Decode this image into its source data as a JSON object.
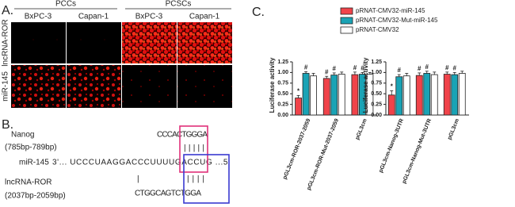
{
  "panel_a": {
    "label": "A.",
    "groups": [
      "PCCs",
      "PCSCs"
    ],
    "columns": [
      "BxPC-3",
      "Capan-1",
      "BxPC-3",
      "Capan-1"
    ],
    "rows": [
      "lncRNA-ROR",
      "miR-145"
    ]
  },
  "panel_b": {
    "label": "B.",
    "nanog": {
      "name": "Nanog",
      "range": "(785bp-789bp)",
      "sequence": "CCCACTGGGA",
      "pairs": "| | | | |"
    },
    "mir": {
      "name": "miR-145",
      "sequence": "3'... UCCCUAAGGACCCUUUUGACCUG ...5'"
    },
    "lncrna": {
      "name": "lncRNA-ROR",
      "range": "(2037bp-2059bp)",
      "sequence": "CTGGCAGTCTGGA",
      "pairs": "| | | |",
      "pair_single": "|"
    }
  },
  "panel_c_label": "C.",
  "chart_data": [
    {
      "type": "bar",
      "ylabel": "Luciferase activity",
      "categories": [
        "pGL3cm-ROR-2037-2059",
        "pGL3cm-ROR-Mut-2037-2059",
        "pGL3cm"
      ],
      "series": [
        {
          "name": "pRNAT-CMV32-miR-145",
          "color": "#f0434a",
          "values": [
            0.4,
            0.86,
            0.95
          ],
          "errors": [
            0.06,
            0.05,
            0.06
          ],
          "marks": [
            "*",
            "#",
            "#"
          ]
        },
        {
          "name": "pRNAT-CMV32-Mut-miR-145",
          "color": "#1aa3b5",
          "values": [
            0.98,
            0.94,
            0.96
          ],
          "errors": [
            0.04,
            0.05,
            0.04
          ],
          "marks": [
            "#",
            "#",
            "#"
          ]
        },
        {
          "name": "pRNAT-CMV32",
          "color": "#ffffff",
          "values": [
            0.92,
            0.96,
            0.96
          ],
          "errors": [
            0.06,
            0.05,
            0.04
          ],
          "marks": [
            null,
            null,
            null
          ]
        }
      ],
      "ylim": [
        0,
        1.25
      ],
      "yticks": [
        {
          "value": 0,
          "label": "0.00"
        },
        {
          "value": 0.25,
          "label": "0.25"
        },
        {
          "value": 0.5,
          "label": "0.50"
        },
        {
          "value": 0.75,
          "label": "0.75"
        },
        {
          "value": 1,
          "label": "1.00"
        },
        {
          "value": 1.25,
          "label": "1.25"
        }
      ]
    },
    {
      "type": "bar",
      "ylabel": "Luciferase activity",
      "categories": [
        "pGL3cm-Nanog-3UTR",
        "pGL3cm-Nanog-Mut-3UTR",
        "pGL3cm"
      ],
      "series": [
        {
          "color": "#f0434a",
          "values": [
            0.47,
            0.93,
            0.96
          ],
          "errors": [
            0.1,
            0.06,
            0.05
          ],
          "marks": [
            "*",
            "#",
            "#"
          ]
        },
        {
          "color": "#1aa3b5",
          "values": [
            0.9,
            0.98,
            0.95
          ],
          "errors": [
            0.05,
            0.05,
            0.05
          ],
          "marks": [
            "#",
            "#",
            "#"
          ]
        },
        {
          "color": "#ffffff",
          "values": [
            0.92,
            0.95,
            0.98
          ],
          "errors": [
            0.06,
            0.06,
            0.05
          ],
          "marks": [
            null,
            null,
            null
          ]
        }
      ],
      "ylim": [
        0,
        1.25
      ],
      "yticks": [
        {
          "value": 0,
          "label": "0.00"
        },
        {
          "value": 0.25,
          "label": "0.25"
        },
        {
          "value": 0.5,
          "label": "0.50"
        },
        {
          "value": 0.75,
          "label": "0.75"
        },
        {
          "value": 1,
          "label": "1.00"
        },
        {
          "value": 1.25,
          "label": "1.25"
        }
      ]
    }
  ]
}
